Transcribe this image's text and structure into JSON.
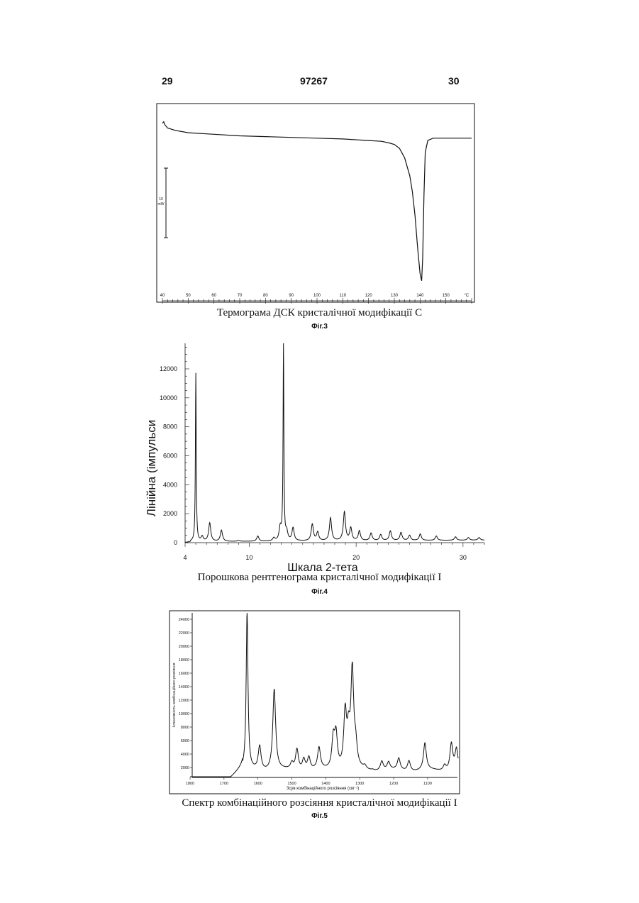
{
  "header": {
    "left_page": "29",
    "patent_number": "97267",
    "right_page": "30"
  },
  "figures": [
    {
      "caption": "Термограма ДСК кристалічної модифікації С",
      "label": "Фіг.3",
      "chart_data": {
        "type": "line",
        "title": "",
        "xlabel": "°C",
        "ylabel": "",
        "scale_bar_label": "10 mW",
        "x_ticks": [
          40,
          50,
          60,
          70,
          80,
          90,
          100,
          110,
          120,
          130,
          140,
          150
        ],
        "xlim": [
          40,
          160
        ],
        "ylim": [
          -20,
          2
        ],
        "grid": false,
        "series": [
          {
            "x": [
              40,
              40.5,
              41,
              42,
              45,
              50,
              60,
              70,
              80,
              90,
              100,
              110,
              120,
              125,
              128,
              130,
              132,
              134,
              136,
              137,
              138,
              139,
              140,
              140.6,
              141,
              141.5,
              142,
              143,
              145,
              150,
              155,
              160
            ],
            "y": [
              1.2,
              1.4,
              1.0,
              0.6,
              0.3,
              0.0,
              -0.2,
              -0.4,
              -0.5,
              -0.6,
              -0.7,
              -0.8,
              -1.0,
              -1.1,
              -1.3,
              -1.5,
              -2.0,
              -3.2,
              -5.5,
              -7.5,
              -10.5,
              -14.5,
              -18.0,
              -18.9,
              -16.0,
              -8.0,
              -2.5,
              -1.0,
              -0.7,
              -0.7,
              -0.7,
              -0.7
            ]
          }
        ]
      }
    },
    {
      "caption": "Порошкова рентгенограма кристалічної модифікації I",
      "label": "Фіг.4",
      "chart_data": {
        "type": "line",
        "title": "",
        "xlabel": "Шкала 2-тета",
        "ylabel": "Лінійна (імпульси",
        "y_tick_labels": [
          "0",
          "2000",
          "4000",
          "6000",
          "8000",
          "10000",
          "12000"
        ],
        "x_ticks": [
          4,
          10,
          20,
          30
        ],
        "xlim": [
          4,
          32
        ],
        "ylim": [
          0,
          13500
        ],
        "grid": false,
        "peaks": [
          {
            "x": 5.0,
            "y": 11700
          },
          {
            "x": 5.6,
            "y": 400
          },
          {
            "x": 6.3,
            "y": 1350
          },
          {
            "x": 7.4,
            "y": 850
          },
          {
            "x": 9.0,
            "y": 150
          },
          {
            "x": 10.8,
            "y": 450
          },
          {
            "x": 12.3,
            "y": 300
          },
          {
            "x": 12.9,
            "y": 1000
          },
          {
            "x": 13.2,
            "y": 13600
          },
          {
            "x": 13.5,
            "y": 700
          },
          {
            "x": 14.1,
            "y": 1000
          },
          {
            "x": 15.9,
            "y": 1250
          },
          {
            "x": 16.4,
            "y": 700
          },
          {
            "x": 17.6,
            "y": 1700
          },
          {
            "x": 18.9,
            "y": 2100
          },
          {
            "x": 19.5,
            "y": 1000
          },
          {
            "x": 20.3,
            "y": 800
          },
          {
            "x": 21.4,
            "y": 650
          },
          {
            "x": 22.3,
            "y": 550
          },
          {
            "x": 23.2,
            "y": 800
          },
          {
            "x": 24.2,
            "y": 700
          },
          {
            "x": 25.0,
            "y": 500
          },
          {
            "x": 26.0,
            "y": 600
          },
          {
            "x": 27.5,
            "y": 450
          },
          {
            "x": 29.3,
            "y": 400
          },
          {
            "x": 30.5,
            "y": 350
          },
          {
            "x": 31.5,
            "y": 350
          }
        ]
      }
    },
    {
      "caption": "Спектр комбінаційного розсіяння кристалічної модифікації I",
      "label": "Фіг.5",
      "chart_data": {
        "type": "line",
        "title": "",
        "xlabel": "Зсув комбінаційного розсіяння (см⁻¹)",
        "ylabel": "Інтенсивність комбінаційного розсіяння",
        "y_ticks": [
          2000,
          4000,
          6000,
          8000,
          10000,
          12000,
          14000,
          16000,
          18000,
          20000,
          22000,
          24000
        ],
        "x_ticks": [
          1800,
          1700,
          1600,
          1500,
          1400,
          1300,
          1200,
          1100
        ],
        "xlim": [
          1800,
          1010
        ],
        "ylim": [
          0,
          25000
        ],
        "grid": false,
        "peaks": [
          {
            "x": 1632,
            "y": 24800
          },
          {
            "x": 1595,
            "y": 5000
          },
          {
            "x": 1552,
            "y": 13500
          },
          {
            "x": 1500,
            "y": 2500
          },
          {
            "x": 1485,
            "y": 4500
          },
          {
            "x": 1465,
            "y": 3000
          },
          {
            "x": 1450,
            "y": 3300
          },
          {
            "x": 1420,
            "y": 4800
          },
          {
            "x": 1378,
            "y": 5800
          },
          {
            "x": 1370,
            "y": 6300
          },
          {
            "x": 1343,
            "y": 9500
          },
          {
            "x": 1333,
            "y": 6000
          },
          {
            "x": 1322,
            "y": 15800
          },
          {
            "x": 1312,
            "y": 4500
          },
          {
            "x": 1285,
            "y": 2000
          },
          {
            "x": 1262,
            "y": 1500
          },
          {
            "x": 1235,
            "y": 2800
          },
          {
            "x": 1215,
            "y": 2700
          },
          {
            "x": 1185,
            "y": 3300
          },
          {
            "x": 1155,
            "y": 2900
          },
          {
            "x": 1108,
            "y": 5600
          },
          {
            "x": 1082,
            "y": 1600
          },
          {
            "x": 1050,
            "y": 2200
          },
          {
            "x": 1030,
            "y": 5400
          },
          {
            "x": 1015,
            "y": 4600
          }
        ]
      }
    }
  ]
}
